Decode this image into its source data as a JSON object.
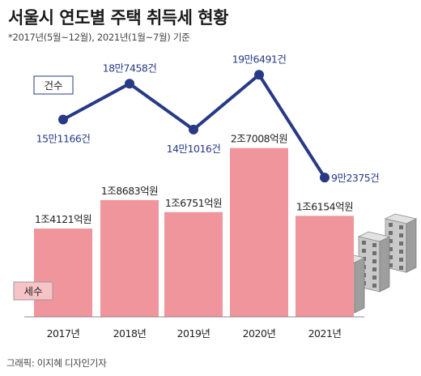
{
  "title": "서울시 연도별 주택 취득세 현황",
  "subtitle": "*2017년(5월~12월), 2021년(1월~7월) 기준",
  "credit": "그래픽: 이지혜 디자인기자",
  "colors": {
    "bar": "#f0959b",
    "line": "#283a86",
    "line_label": "#283a86",
    "axis": "#888888",
    "legend_box_border": "#283a86"
  },
  "chart_data": {
    "type": "bar+line",
    "categories": [
      "2017년",
      "2018년",
      "2019년",
      "2020년",
      "2021년"
    ],
    "bar_series": {
      "legend": "세수",
      "values": [
        14121,
        18683,
        16751,
        27008,
        16154
      ],
      "labels": [
        "1조4121억원",
        "1조8683억원",
        "1조6751억원",
        "2조7008억원",
        "1조6154억원"
      ],
      "ylim": [
        0,
        28000
      ]
    },
    "line_series": {
      "legend": "건수",
      "values": [
        151166,
        187458,
        141016,
        196491,
        92375
      ],
      "labels": [
        "15만1166건",
        "18만7458건",
        "14만1016건",
        "19만6491건",
        "9만2375건"
      ],
      "ylim": [
        90000,
        200000
      ]
    },
    "grid": false
  }
}
